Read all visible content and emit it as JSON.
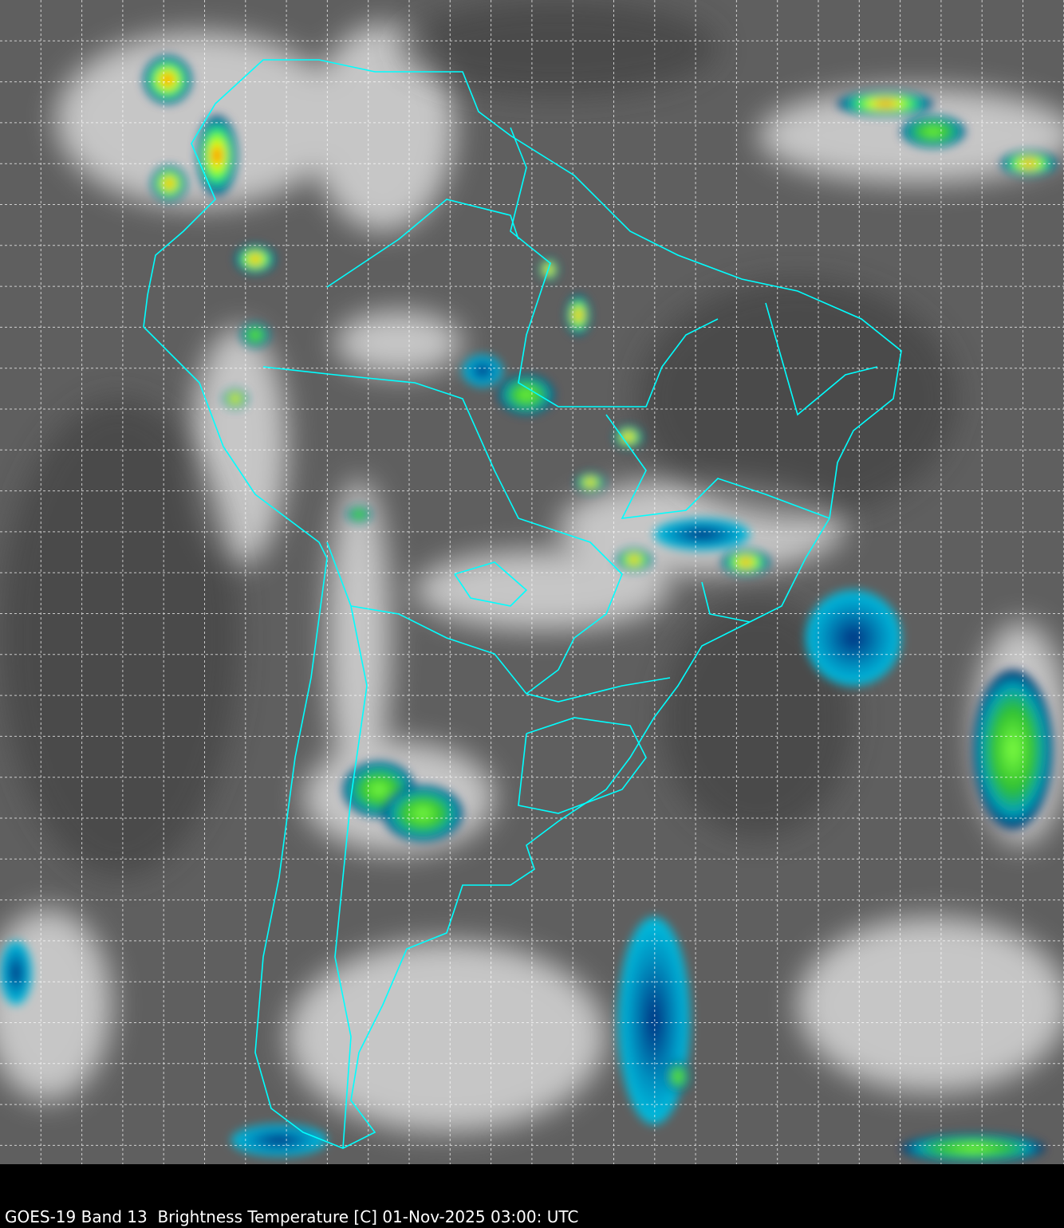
{
  "caption": "GOES-19 Band 13  Brightness Temperature [C] 01-Nov-2025 03:00: UTC",
  "colors": {
    "background": "#000000",
    "borders": "#00ffff",
    "grid": "#ffffff",
    "cold_tops": [
      "#002060",
      "#00a0c0",
      "#40ff40",
      "#ffff00",
      "#ff0000"
    ]
  },
  "map": {
    "projection_grid": "dashed lat/lon grid",
    "region": "South America",
    "overlays": [
      "country borders",
      "state borders"
    ]
  }
}
